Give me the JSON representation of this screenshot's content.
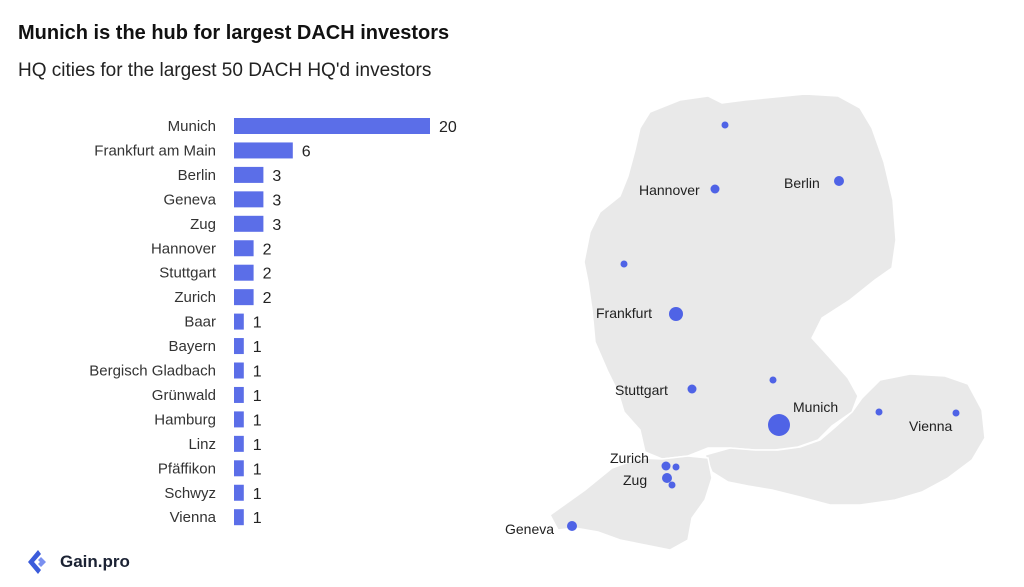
{
  "header": {
    "title": "Munich is the hub for largest DACH investors",
    "subtitle": "HQ cities for the largest 50 DACH HQ'd investors"
  },
  "brand": {
    "name": "Gain.pro",
    "icon": "gainpro-logo-icon"
  },
  "colors": {
    "bar": "#5b6ee8",
    "marker": "#4f63e6",
    "map_land": "#e9e9e9",
    "map_border": "#ffffff"
  },
  "chart_data": [
    {
      "type": "bar",
      "orientation": "horizontal",
      "categories": [
        "Munich",
        "Frankfurt am Main",
        "Berlin",
        "Geneva",
        "Zug",
        "Hannover",
        "Stuttgart",
        "Zurich",
        "Baar",
        "Bayern",
        "Bergisch Gladbach",
        "Grünwald",
        "Hamburg",
        "Linz",
        "Pfäffikon",
        "Schwyz",
        "Vienna"
      ],
      "values": [
        20,
        6,
        3,
        3,
        3,
        2,
        2,
        2,
        1,
        1,
        1,
        1,
        1,
        1,
        1,
        1,
        1
      ],
      "xlim": [
        0,
        20
      ],
      "grid": false,
      "legend": "none"
    }
  ],
  "map": {
    "labeled_cities": [
      {
        "name": "Hannover",
        "count": 2
      },
      {
        "name": "Berlin",
        "count": 3
      },
      {
        "name": "Frankfurt",
        "count": 6
      },
      {
        "name": "Stuttgart",
        "count": 2
      },
      {
        "name": "Munich",
        "count": 20
      },
      {
        "name": "Vienna",
        "count": 1
      },
      {
        "name": "Zurich",
        "count": 2
      },
      {
        "name": "Zug",
        "count": 3
      },
      {
        "name": "Geneva",
        "count": 3
      }
    ],
    "unlabeled_marker_count": 7
  }
}
